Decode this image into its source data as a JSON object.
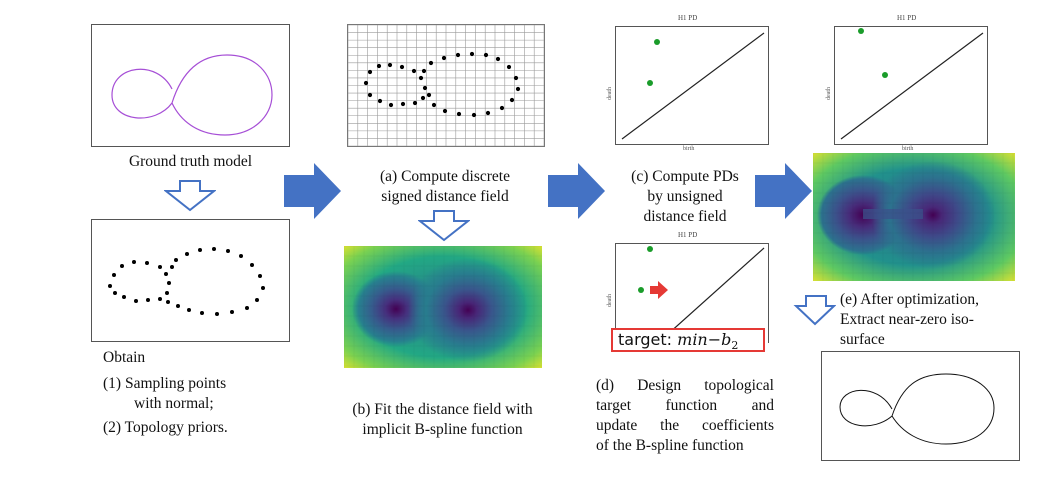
{
  "captions": {
    "gt": "Ground truth model",
    "a_line1": "(a) Compute discrete",
    "a_line2": "signed distance field",
    "b_line1": "(b) Fit the distance field with",
    "b_line2": "implicit B-spline function",
    "c_line1": "(c) Compute PDs",
    "c_line2": "by unsigned",
    "c_line3": "distance field",
    "d_line1": "(d) Design topological",
    "d_line2": "target function and",
    "d_line3": "update the coefficients",
    "d_line4": "of the B-spline function",
    "e_line1": "(e) After optimization,",
    "e_line2": "Extract near-zero iso-",
    "e_line3": "surface",
    "obtain": "Obtain",
    "obtain_item1a": "(1)  Sampling points",
    "obtain_item1b": "with normal;",
    "obtain_item2": "(2)  Topology priors."
  },
  "pd": {
    "title": "H1 PD",
    "xlabel": "birth",
    "ylabel": "death"
  },
  "target": {
    "label": "target:",
    "expr": "min",
    "term": "−b",
    "sub": "2"
  },
  "colors": {
    "arrow_blue": "#4472c4",
    "curve_purple": "#a64fd6",
    "point_green": "#1a9c2a",
    "highlight_red": "#e53935"
  }
}
